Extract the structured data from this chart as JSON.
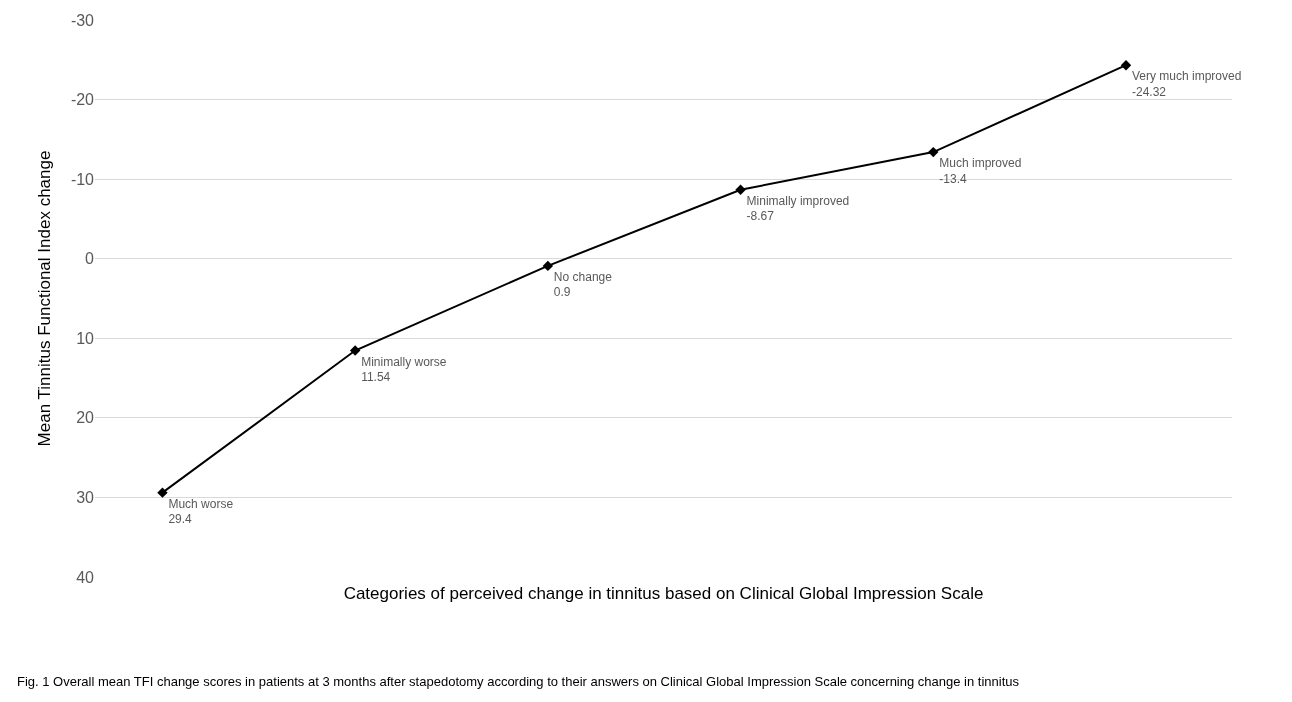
{
  "chart_data": {
    "type": "line",
    "xlabel": "Categories of perceived change in tinnitus based on Clinical Global Impression Scale",
    "ylabel": "Mean Tinnitus Functional Index change",
    "categories": [
      "Much worse",
      "Minimally worse",
      "No change",
      "Minimally improved",
      "Much improved",
      "Very much improved"
    ],
    "series": [
      {
        "color": "#000000",
        "values": [
          29.4,
          11.54,
          0.9,
          -8.67,
          -13.4,
          -24.32
        ]
      }
    ],
    "data_labels": true,
    "tick_labels": "y",
    "ylim": [
      40,
      -30
    ],
    "yticks": [
      -30,
      -20,
      -10,
      0,
      10,
      20,
      30,
      40
    ],
    "grid": "y",
    "marker": "diamond",
    "line_style": "solid",
    "annotations": [
      "Fig. 1 Overall mean TFI change scores in patients at 3 months after stapedotomy according to their answers on Clinical Global Impression Scale concerning change in tinnitus"
    ]
  }
}
